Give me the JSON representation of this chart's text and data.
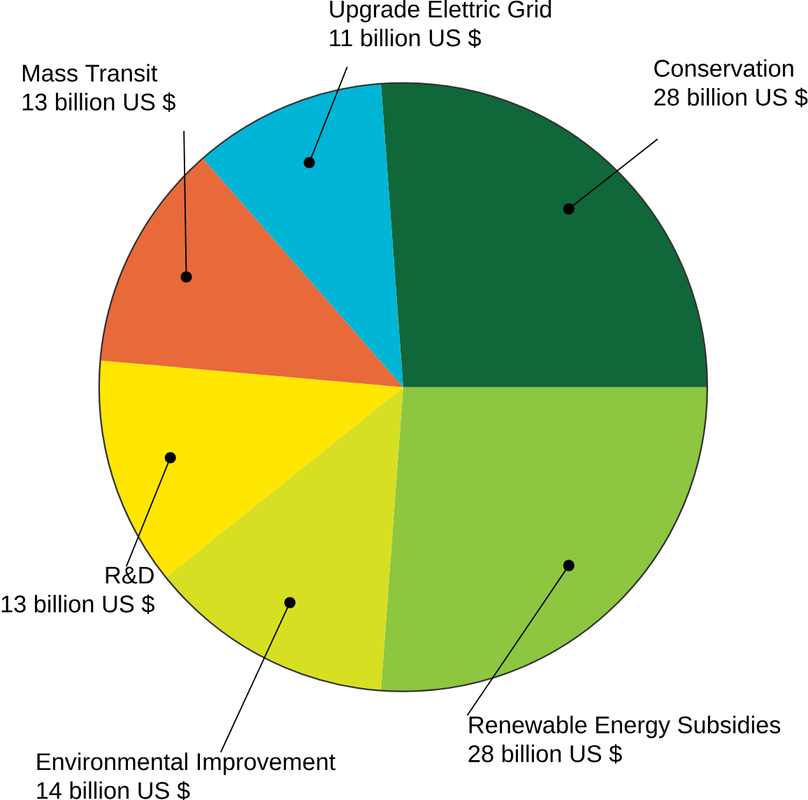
{
  "chart_data": {
    "type": "pie",
    "categories": [
      "Conservation",
      "Renewable Energy Subsidies",
      "Environmental Improvement",
      "R&D",
      "Mass Transit",
      "Upgrade Elettric Grid"
    ],
    "values": [
      28,
      28,
      14,
      13,
      13,
      11
    ],
    "colors": [
      "#10673a",
      "#8dc63f",
      "#d7df23",
      "#ffe600",
      "#e8693a",
      "#00b5d6"
    ],
    "value_labels": [
      "28 billion US $",
      "28 billion US $",
      "14 billion US $",
      "13 billion US $",
      "13 billion US $",
      "11 billion US $"
    ]
  }
}
